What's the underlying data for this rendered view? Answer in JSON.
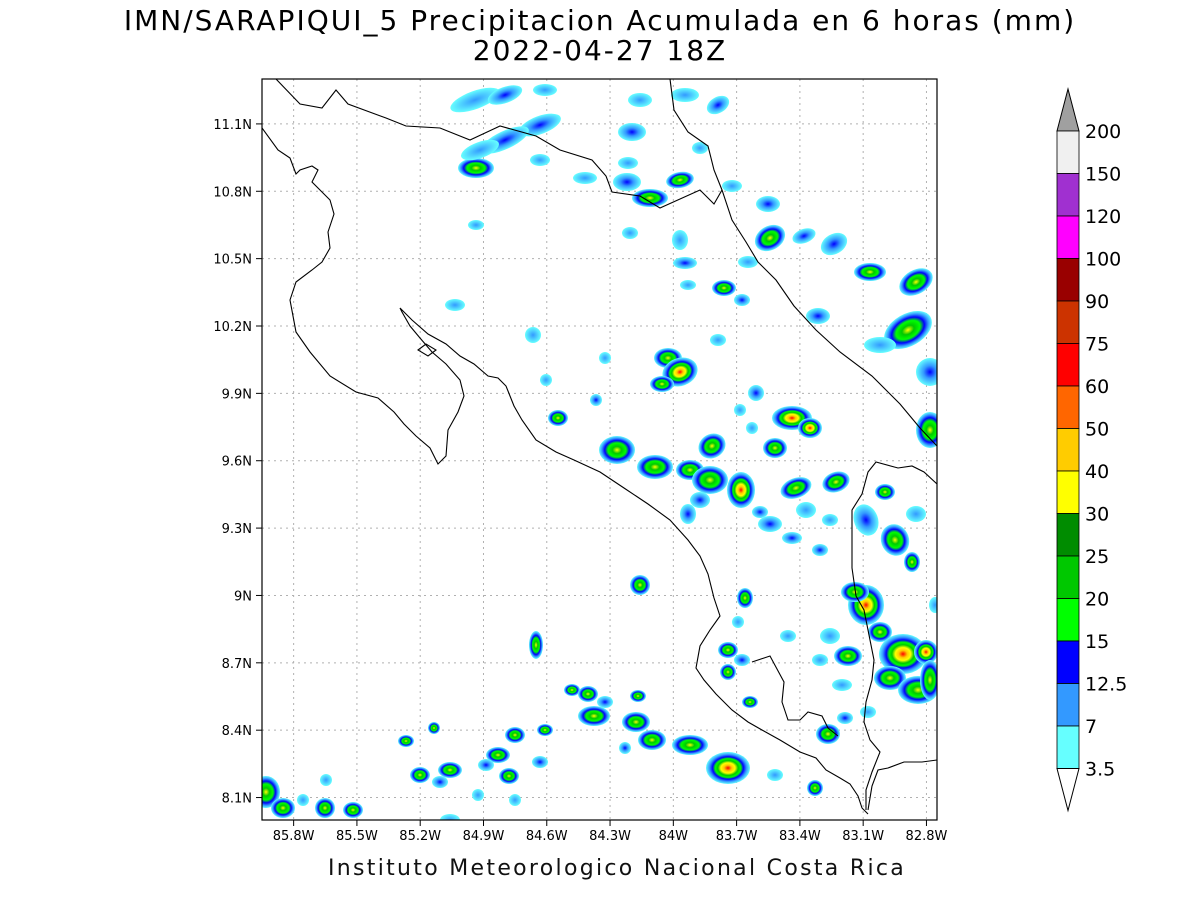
{
  "header": {
    "title": "IMN/SARAPIQUI_5 Precipitacion Acumulada en 6 horas (mm)",
    "subtitle": "2022-04-27 18Z"
  },
  "footer": {
    "credit": "Instituto Meteorologico Nacional Costa Rica"
  },
  "map": {
    "lat_ticks": [
      "11.1N",
      "10.8N",
      "10.5N",
      "10.2N",
      "9.9N",
      "9.6N",
      "9.3N",
      "9N",
      "8.7N",
      "8.4N",
      "8.1N"
    ],
    "lon_ticks": [
      "85.8W",
      "85.5W",
      "85.2W",
      "84.9W",
      "84.6W",
      "84.3W",
      "84W",
      "83.7W",
      "83.4W",
      "83.1W",
      "82.8W"
    ],
    "lat_range": [
      8.0,
      11.3
    ],
    "lon_range": [
      -85.95,
      -82.75
    ],
    "grid": true
  },
  "colorbar": {
    "labels": [
      "200",
      "150",
      "120",
      "100",
      "90",
      "75",
      "60",
      "50",
      "40",
      "30",
      "25",
      "20",
      "15",
      "12.5",
      "7",
      "3.5"
    ],
    "bands": [
      {
        "range": "150-200",
        "color": "#f0f0f0"
      },
      {
        "range": "120-150",
        "color": "#a030d0"
      },
      {
        "range": "100-120",
        "color": "#ff00ff"
      },
      {
        "range": "90-100",
        "color": "#990000"
      },
      {
        "range": "75-90",
        "color": "#cc3300"
      },
      {
        "range": "60-75",
        "color": "#ff0000"
      },
      {
        "range": "50-60",
        "color": "#ff6600"
      },
      {
        "range": "40-50",
        "color": "#ffcc00"
      },
      {
        "range": "30-40",
        "color": "#ffff00"
      },
      {
        "range": "25-30",
        "color": "#008c00"
      },
      {
        "range": "20-25",
        "color": "#00c800"
      },
      {
        "range": "15-20",
        "color": "#00ff00"
      },
      {
        "range": "12.5-15",
        "color": "#0000ff"
      },
      {
        "range": "7-12.5",
        "color": "#3399ff"
      },
      {
        "range": "3.5-7",
        "color": "#66ffff"
      }
    ],
    "over_color": "#a0a0a0",
    "under_color": "#ffffff"
  }
}
